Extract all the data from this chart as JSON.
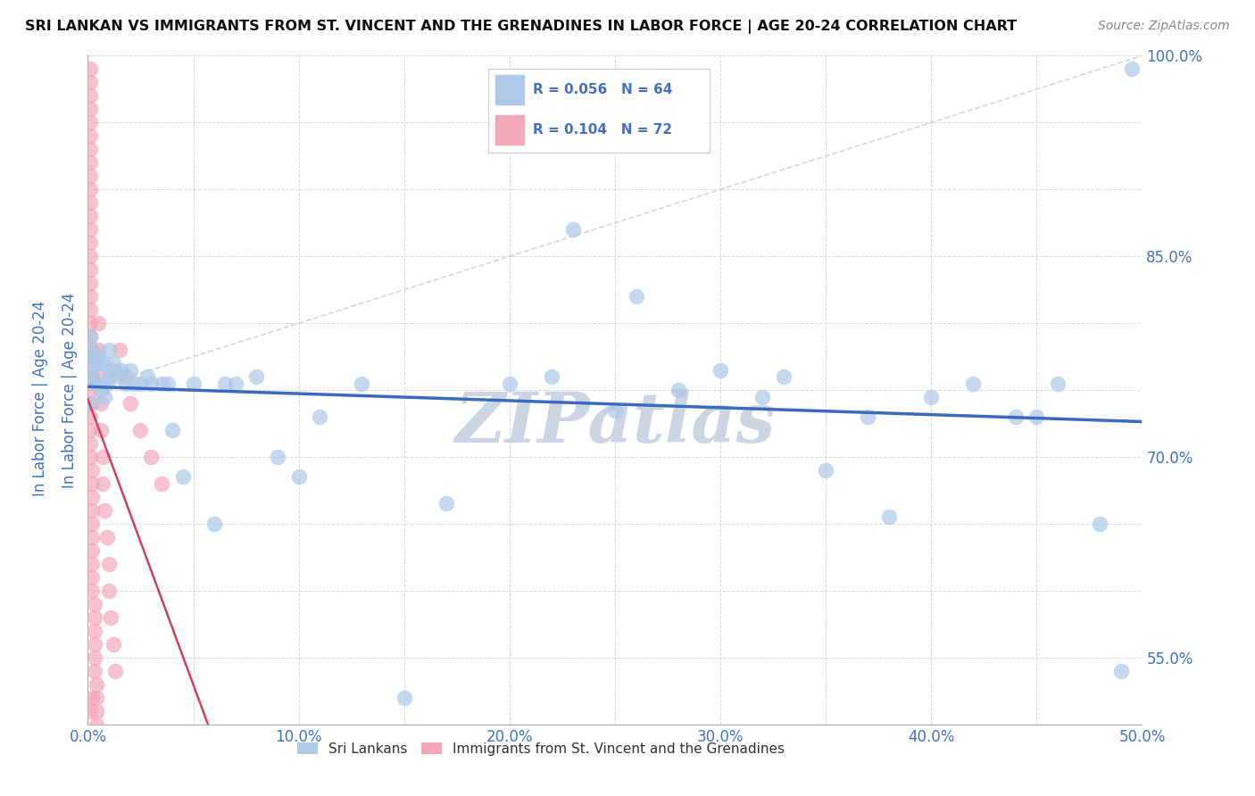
{
  "title": "SRI LANKAN VS IMMIGRANTS FROM ST. VINCENT AND THE GRENADINES IN LABOR FORCE | AGE 20-24 CORRELATION CHART",
  "source_text": "Source: ZipAtlas.com",
  "legend_blue_R": "0.056",
  "legend_blue_N": "64",
  "legend_pink_R": "0.104",
  "legend_pink_N": "72",
  "legend_blue_label": "Sri Lankans",
  "legend_pink_label": "Immigrants from St. Vincent and the Grenadines",
  "blue_color": "#adc8e8",
  "pink_color": "#f2a8b8",
  "trend_blue_color": "#3a6bbf",
  "trend_pink_color": "#d04060",
  "text_color": "#4472c4",
  "background_color": "#ffffff",
  "grid_color": "#d0d0d0",
  "watermark_color": "#cdd5e5",
  "xlim": [
    0.0,
    0.5
  ],
  "ylim": [
    0.5,
    1.0
  ],
  "yticks_shown": [
    0.55,
    0.7,
    0.85,
    1.0
  ],
  "ytick_labels": [
    "55.0%",
    "70.0%",
    "85.0%",
    "100.0%"
  ],
  "blue_x": [
    0.001,
    0.001,
    0.001,
    0.002,
    0.002,
    0.002,
    0.003,
    0.003,
    0.004,
    0.005,
    0.005,
    0.006,
    0.007,
    0.007,
    0.008,
    0.009,
    0.01,
    0.01,
    0.011,
    0.012,
    0.013,
    0.015,
    0.016,
    0.018,
    0.02,
    0.022,
    0.025,
    0.028,
    0.03,
    0.035,
    0.038,
    0.04,
    0.045,
    0.05,
    0.06,
    0.065,
    0.07,
    0.08,
    0.09,
    0.1,
    0.11,
    0.13,
    0.15,
    0.17,
    0.2,
    0.22,
    0.25,
    0.28,
    0.32,
    0.37,
    0.4,
    0.42,
    0.45,
    0.48,
    0.49,
    0.495,
    0.23,
    0.26,
    0.3,
    0.33,
    0.35,
    0.38,
    0.44,
    0.46
  ],
  "blue_y": [
    0.775,
    0.76,
    0.79,
    0.78,
    0.74,
    0.76,
    0.775,
    0.77,
    0.755,
    0.77,
    0.775,
    0.75,
    0.77,
    0.755,
    0.745,
    0.755,
    0.76,
    0.78,
    0.765,
    0.77,
    0.765,
    0.76,
    0.765,
    0.755,
    0.765,
    0.755,
    0.755,
    0.76,
    0.755,
    0.755,
    0.755,
    0.72,
    0.685,
    0.755,
    0.65,
    0.755,
    0.755,
    0.76,
    0.7,
    0.685,
    0.73,
    0.755,
    0.52,
    0.665,
    0.755,
    0.76,
    0.735,
    0.75,
    0.745,
    0.73,
    0.745,
    0.755,
    0.73,
    0.65,
    0.54,
    0.99,
    0.87,
    0.82,
    0.765,
    0.76,
    0.69,
    0.655,
    0.73,
    0.755
  ],
  "pink_x": [
    0.001,
    0.001,
    0.001,
    0.001,
    0.001,
    0.001,
    0.001,
    0.001,
    0.001,
    0.001,
    0.001,
    0.001,
    0.001,
    0.001,
    0.001,
    0.001,
    0.001,
    0.001,
    0.001,
    0.001,
    0.001,
    0.001,
    0.001,
    0.001,
    0.001,
    0.001,
    0.001,
    0.001,
    0.001,
    0.001,
    0.002,
    0.002,
    0.002,
    0.002,
    0.002,
    0.002,
    0.002,
    0.002,
    0.002,
    0.002,
    0.003,
    0.003,
    0.003,
    0.003,
    0.003,
    0.003,
    0.004,
    0.004,
    0.004,
    0.004,
    0.005,
    0.005,
    0.005,
    0.006,
    0.006,
    0.007,
    0.007,
    0.008,
    0.009,
    0.01,
    0.01,
    0.011,
    0.012,
    0.013,
    0.015,
    0.018,
    0.02,
    0.025,
    0.03,
    0.035,
    0.001,
    0.002
  ],
  "pink_y": [
    0.99,
    0.98,
    0.97,
    0.96,
    0.95,
    0.94,
    0.93,
    0.92,
    0.91,
    0.9,
    0.89,
    0.88,
    0.87,
    0.86,
    0.85,
    0.84,
    0.83,
    0.82,
    0.81,
    0.8,
    0.79,
    0.78,
    0.77,
    0.76,
    0.75,
    0.74,
    0.73,
    0.72,
    0.71,
    0.7,
    0.69,
    0.68,
    0.67,
    0.66,
    0.65,
    0.64,
    0.63,
    0.62,
    0.61,
    0.6,
    0.59,
    0.58,
    0.57,
    0.56,
    0.55,
    0.54,
    0.53,
    0.52,
    0.51,
    0.5,
    0.8,
    0.78,
    0.76,
    0.74,
    0.72,
    0.7,
    0.68,
    0.66,
    0.64,
    0.62,
    0.6,
    0.58,
    0.56,
    0.54,
    0.78,
    0.76,
    0.74,
    0.72,
    0.7,
    0.68,
    0.51,
    0.52
  ]
}
